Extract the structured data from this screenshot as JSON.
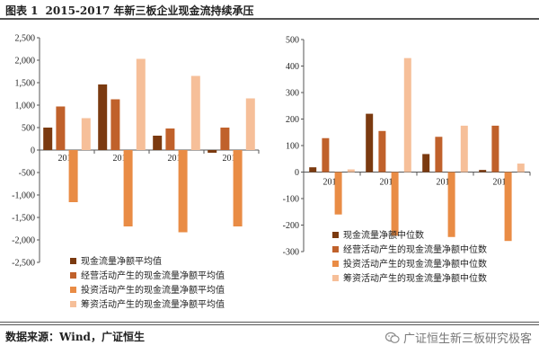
{
  "header": {
    "fig_label": "图表 1",
    "title": "2015-2017 年新三板企业现金流持续承压"
  },
  "footer": {
    "source": "数据来源：Wind，广证恒生",
    "watermark": "广证恒生新三板研究极客"
  },
  "colors": {
    "s1": "#7b3a10",
    "s2": "#c0612b",
    "s3": "#e98c45",
    "s4": "#f6bf99"
  },
  "chart_data": [
    {
      "type": "bar",
      "categories": [
        "2014",
        "2015",
        "2016",
        "2017"
      ],
      "ylim": [
        -2500,
        2500
      ],
      "yticks": [
        2500,
        2000,
        1500,
        1000,
        500,
        0,
        -500,
        -1000,
        -1500,
        -2000,
        -2500
      ],
      "ytick_labels": [
        "2,500",
        "2,000",
        "1,500",
        "1,000",
        "500",
        "0",
        "-500",
        "-1,000",
        "-1,500",
        "-2,000",
        "-2,500"
      ],
      "series": [
        {
          "name": "现金流量净额平均值",
          "values": [
            500,
            1460,
            320,
            -60
          ]
        },
        {
          "name": "经营活动产生的现金流量净额平均值",
          "values": [
            970,
            1130,
            480,
            500
          ]
        },
        {
          "name": "投资活动产生的现金流量净额平均值",
          "values": [
            -1160,
            -1700,
            -1830,
            -1700
          ]
        },
        {
          "name": "筹资活动产生的现金流量净额平均值",
          "values": [
            710,
            2030,
            1650,
            1150
          ]
        }
      ]
    },
    {
      "type": "bar",
      "categories": [
        "2014",
        "2015",
        "2016",
        "2017"
      ],
      "ylim": [
        -300,
        500
      ],
      "yticks": [
        500,
        400,
        300,
        200,
        100,
        0,
        -100,
        -200,
        -300
      ],
      "ytick_labels": [
        "500",
        "400",
        "300",
        "200",
        "100",
        "0",
        "-100",
        "-200",
        "-300"
      ],
      "series": [
        {
          "name": "现金流量净额中位数",
          "values": [
            18,
            220,
            68,
            8
          ]
        },
        {
          "name": "经营活动产生的现金流量净额中位数",
          "values": [
            128,
            155,
            133,
            175
          ]
        },
        {
          "name": "投资活动产生的现金流量净额中位数",
          "values": [
            -160,
            -240,
            -245,
            -260
          ]
        },
        {
          "name": "筹资活动产生的现金流量净额中位数",
          "values": [
            10,
            430,
            175,
            32
          ]
        }
      ]
    }
  ]
}
